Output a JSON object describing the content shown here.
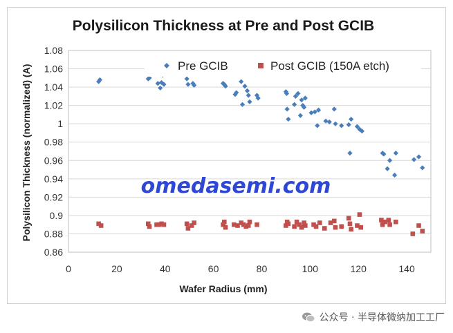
{
  "chart_data": {
    "type": "scatter",
    "title": "Polysilicon Thickness at Pre and Post GCIB",
    "xlabel": "Wafer Radius (mm)",
    "ylabel": "Polysilicon Thickness (normalized) (A)",
    "xlim": [
      0,
      150
    ],
    "ylim": [
      0.86,
      1.08
    ],
    "xticks": [
      "0",
      "20",
      "40",
      "60",
      "80",
      "100",
      "120",
      "140"
    ],
    "yticks": [
      "0.86",
      "0.88",
      "0.9",
      "0.92",
      "0.94",
      "0.96",
      "0.98",
      "1",
      "1.02",
      "1.04",
      "1.06",
      "1.08"
    ],
    "grid": "horizontal",
    "legend_position": "top",
    "series": [
      {
        "name": "Pre GCIB",
        "marker": "diamond",
        "color": "#4a7ebb",
        "points": [
          [
            12.5,
            1.046
          ],
          [
            13,
            1.048
          ],
          [
            33,
            1.049
          ],
          [
            33.5,
            1.05
          ],
          [
            37,
            1.044
          ],
          [
            38,
            1.039
          ],
          [
            38.5,
            1.045
          ],
          [
            39,
            1.053
          ],
          [
            39.5,
            1.043
          ],
          [
            49,
            1.049
          ],
          [
            49.5,
            1.043
          ],
          [
            51.5,
            1.044
          ],
          [
            52,
            1.042
          ],
          [
            64,
            1.044
          ],
          [
            64.5,
            1.043
          ],
          [
            65,
            1.041
          ],
          [
            69,
            1.032
          ],
          [
            69.5,
            1.034
          ],
          [
            71.5,
            1.046
          ],
          [
            72,
            1.021
          ],
          [
            73,
            1.041
          ],
          [
            74,
            1.036
          ],
          [
            74.5,
            1.031
          ],
          [
            75,
            1.024
          ],
          [
            78,
            1.031
          ],
          [
            78.5,
            1.028
          ],
          [
            90,
            1.035
          ],
          [
            90.3,
            1.033
          ],
          [
            90.5,
            1.016
          ],
          [
            91,
            1.005
          ],
          [
            93.5,
            1.021
          ],
          [
            94,
            1.03
          ],
          [
            95,
            1.033
          ],
          [
            96,
            1.009
          ],
          [
            96.5,
            1.026
          ],
          [
            97,
            1.02
          ],
          [
            97.5,
            1.018
          ],
          [
            98,
            1.028
          ],
          [
            100.5,
            1.012
          ],
          [
            102,
            1.013
          ],
          [
            103,
            0.998
          ],
          [
            103.5,
            1.015
          ],
          [
            106.5,
            1.003
          ],
          [
            108,
            1.002
          ],
          [
            110,
            1.016
          ],
          [
            110.5,
            1.0
          ],
          [
            113,
            0.998
          ],
          [
            116,
            0.999
          ],
          [
            116.5,
            0.968
          ],
          [
            117,
            1.005
          ],
          [
            119.5,
            0.997
          ],
          [
            120.5,
            0.994
          ],
          [
            121.5,
            0.992
          ],
          [
            130,
            0.968
          ],
          [
            130.5,
            0.967
          ],
          [
            132,
            0.951
          ],
          [
            133,
            0.96
          ],
          [
            135,
            0.944
          ],
          [
            135.5,
            0.968
          ],
          [
            143,
            0.961
          ],
          [
            145,
            0.964
          ],
          [
            146.5,
            0.952
          ]
        ]
      },
      {
        "name": "Post GCIB (150A etch)",
        "marker": "square",
        "color": "#c0504d",
        "points": [
          [
            12.5,
            0.891
          ],
          [
            13.5,
            0.889
          ],
          [
            33,
            0.891
          ],
          [
            33.5,
            0.888
          ],
          [
            36.5,
            0.89
          ],
          [
            37.5,
            0.89
          ],
          [
            38.5,
            0.891
          ],
          [
            39.5,
            0.89
          ],
          [
            49,
            0.891
          ],
          [
            49.5,
            0.886
          ],
          [
            51,
            0.889
          ],
          [
            52,
            0.892
          ],
          [
            64,
            0.89
          ],
          [
            64.5,
            0.893
          ],
          [
            65,
            0.887
          ],
          [
            68.5,
            0.89
          ],
          [
            70,
            0.889
          ],
          [
            71.5,
            0.892
          ],
          [
            72.5,
            0.89
          ],
          [
            73.5,
            0.888
          ],
          [
            74.5,
            0.889
          ],
          [
            75,
            0.893
          ],
          [
            78,
            0.89
          ],
          [
            90,
            0.889
          ],
          [
            90.5,
            0.893
          ],
          [
            91,
            0.891
          ],
          [
            93.5,
            0.888
          ],
          [
            94.5,
            0.893
          ],
          [
            95.5,
            0.89
          ],
          [
            96.5,
            0.887
          ],
          [
            97.5,
            0.892
          ],
          [
            98,
            0.889
          ],
          [
            101.5,
            0.89
          ],
          [
            102.5,
            0.888
          ],
          [
            104,
            0.892
          ],
          [
            106,
            0.886
          ],
          [
            108.5,
            0.892
          ],
          [
            110,
            0.894
          ],
          [
            110.5,
            0.887
          ],
          [
            113,
            0.888
          ],
          [
            116,
            0.897
          ],
          [
            116.5,
            0.891
          ],
          [
            117,
            0.885
          ],
          [
            119.5,
            0.889
          ],
          [
            120.5,
            0.901
          ],
          [
            121,
            0.887
          ],
          [
            129.5,
            0.895
          ],
          [
            130,
            0.89
          ],
          [
            131,
            0.893
          ],
          [
            132.5,
            0.895
          ],
          [
            133,
            0.89
          ],
          [
            135.5,
            0.893
          ],
          [
            142.5,
            0.88
          ],
          [
            145,
            0.889
          ],
          [
            146.5,
            0.883
          ]
        ]
      }
    ]
  },
  "watermark": "omedasemi.com",
  "footer": {
    "icon": "wechat-icon",
    "text": "公众号 · 半导体微纳加工工厂"
  }
}
